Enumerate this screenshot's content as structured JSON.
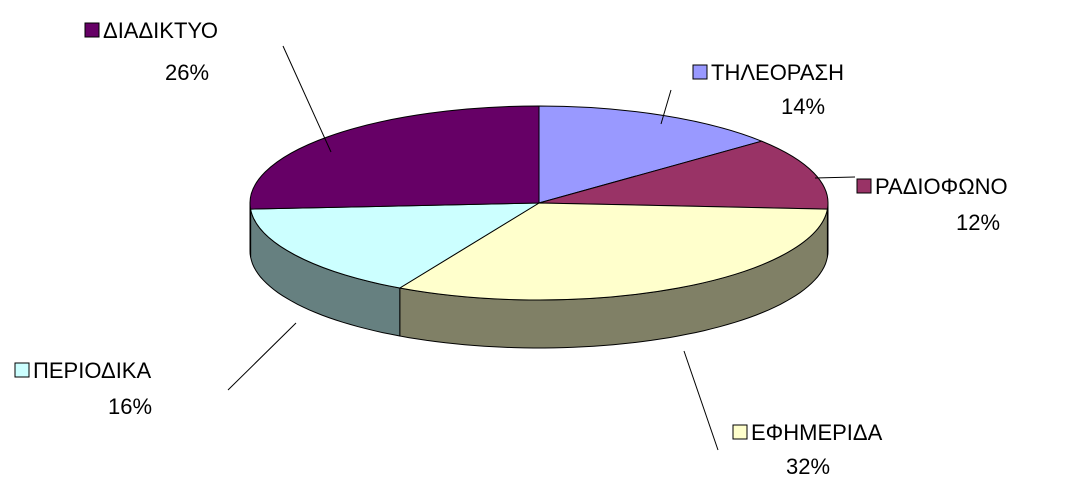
{
  "chart_data": {
    "type": "pie",
    "categories": [
      "ΤΗΛΕΟΡΑΣΗ",
      "ΡΑΔΙΟΦΩΝΟ",
      "ΕΦΗΜΕΡΙΔΑ",
      "ΠΕΡΙΟΔΙΚΑ",
      "ΔΙΑΔΙΚΤΥΟ"
    ],
    "values": [
      14,
      12,
      32,
      16,
      26
    ],
    "value_labels": [
      "14%",
      "12%",
      "32%",
      "16%",
      "26%"
    ],
    "colors": [
      "#9999ff",
      "#993366",
      "#ffffcc",
      "#ccffff",
      "#660066"
    ]
  }
}
